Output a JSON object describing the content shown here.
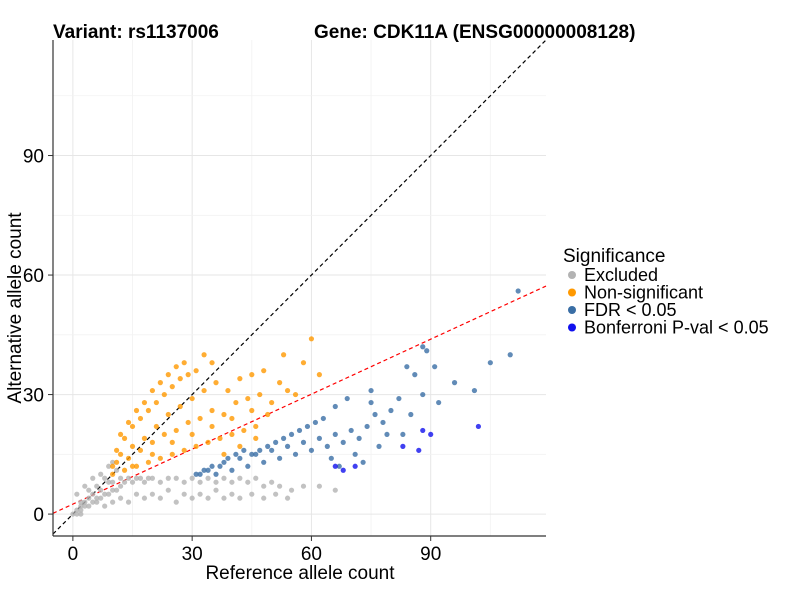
{
  "chart_data": {
    "type": "scatter",
    "title_left": "Variant: rs1137006",
    "title_right": "Gene: CDK11A (ENSG00000008128)",
    "xlabel": "Reference allele count",
    "ylabel": "Alternative allele count",
    "xlim": [
      -5,
      119
    ],
    "ylim": [
      -5.5,
      119
    ],
    "x_ticks": [
      0,
      30,
      60,
      90
    ],
    "y_ticks": [
      0,
      30,
      60,
      90
    ],
    "grid": true,
    "legend": {
      "title": "Significance",
      "position": "right",
      "entries": [
        {
          "label": "Excluded",
          "color": "#b3b3b3"
        },
        {
          "label": "Non-significant",
          "color": "#ff9900"
        },
        {
          "label": "FDR < 0.05",
          "color": "#3a6ea5"
        },
        {
          "label": "Bonferroni P-val < 0.05",
          "color": "#1010ee"
        }
      ]
    },
    "reference_lines": [
      {
        "name": "identity",
        "slope": 1.0,
        "intercept": 0,
        "color": "#000000",
        "style": "dashed"
      },
      {
        "name": "fit",
        "slope": 0.46,
        "intercept": 2.5,
        "color": "#ff0000",
        "style": "dashed"
      }
    ],
    "series": [
      {
        "name": "Excluded",
        "color": "#b3b3b3",
        "points": [
          [
            1,
            1
          ],
          [
            2,
            1
          ],
          [
            2,
            2
          ],
          [
            3,
            2
          ],
          [
            3,
            3
          ],
          [
            4,
            2
          ],
          [
            4,
            4
          ],
          [
            5,
            3
          ],
          [
            5,
            5
          ],
          [
            6,
            3
          ],
          [
            6,
            4
          ],
          [
            7,
            4
          ],
          [
            7,
            6
          ],
          [
            8,
            5
          ],
          [
            9,
            5
          ],
          [
            9,
            8
          ],
          [
            10,
            6
          ],
          [
            10,
            8
          ],
          [
            11,
            6
          ],
          [
            12,
            7
          ],
          [
            12,
            9
          ],
          [
            13,
            8
          ],
          [
            14,
            9
          ],
          [
            15,
            8
          ],
          [
            16,
            9
          ],
          [
            17,
            9
          ],
          [
            18,
            8
          ],
          [
            19,
            9
          ],
          [
            20,
            9
          ],
          [
            22,
            8
          ],
          [
            24,
            9
          ],
          [
            26,
            9
          ],
          [
            28,
            8
          ],
          [
            30,
            9
          ],
          [
            32,
            8
          ],
          [
            34,
            9
          ],
          [
            36,
            8
          ],
          [
            38,
            9
          ],
          [
            40,
            8
          ],
          [
            42,
            9
          ],
          [
            44,
            8
          ],
          [
            46,
            9
          ],
          [
            48,
            7
          ],
          [
            50,
            8
          ],
          [
            52,
            7
          ],
          [
            55,
            6
          ],
          [
            58,
            7
          ],
          [
            62,
            7
          ],
          [
            66,
            6
          ],
          [
            8,
            2
          ],
          [
            10,
            3
          ],
          [
            12,
            4
          ],
          [
            14,
            3
          ],
          [
            16,
            5
          ],
          [
            18,
            4
          ],
          [
            20,
            5
          ],
          [
            22,
            4
          ],
          [
            24,
            6
          ],
          [
            26,
            3
          ],
          [
            28,
            5
          ],
          [
            30,
            4
          ],
          [
            32,
            5
          ],
          [
            34,
            4
          ],
          [
            36,
            6
          ],
          [
            38,
            4
          ],
          [
            40,
            5
          ],
          [
            42,
            4
          ],
          [
            45,
            5
          ],
          [
            48,
            4
          ],
          [
            51,
            5
          ],
          [
            54,
            4
          ],
          [
            2,
            3
          ],
          [
            4,
            6
          ],
          [
            6,
            7
          ],
          [
            8,
            9
          ],
          [
            1,
            5
          ],
          [
            3,
            7
          ],
          [
            5,
            9
          ],
          [
            7,
            10
          ],
          [
            9,
            12
          ],
          [
            10,
            13
          ],
          [
            11,
            11
          ],
          [
            0,
            0
          ],
          [
            1,
            0
          ],
          [
            2,
            0
          ]
        ]
      },
      {
        "name": "Non-significant",
        "color": "#ff9900",
        "points": [
          [
            10,
            10
          ],
          [
            11,
            13
          ],
          [
            12,
            15
          ],
          [
            13,
            11
          ],
          [
            14,
            14
          ],
          [
            15,
            17
          ],
          [
            16,
            12
          ],
          [
            17,
            16
          ],
          [
            18,
            19
          ],
          [
            19,
            13
          ],
          [
            20,
            18
          ],
          [
            21,
            22
          ],
          [
            22,
            14
          ],
          [
            23,
            20
          ],
          [
            24,
            25
          ],
          [
            25,
            15
          ],
          [
            26,
            21
          ],
          [
            27,
            27
          ],
          [
            28,
            16
          ],
          [
            29,
            23
          ],
          [
            30,
            29
          ],
          [
            31,
            17
          ],
          [
            32,
            24
          ],
          [
            33,
            31
          ],
          [
            34,
            18
          ],
          [
            35,
            26
          ],
          [
            36,
            33
          ],
          [
            37,
            19
          ],
          [
            38,
            25
          ],
          [
            39,
            31
          ],
          [
            40,
            20
          ],
          [
            41,
            28
          ],
          [
            42,
            34
          ],
          [
            43,
            21
          ],
          [
            44,
            29
          ],
          [
            45,
            35
          ],
          [
            46,
            22
          ],
          [
            47,
            30
          ],
          [
            48,
            36
          ],
          [
            50,
            28
          ],
          [
            52,
            33
          ],
          [
            54,
            31
          ],
          [
            56,
            30
          ],
          [
            58,
            38
          ],
          [
            60,
            44
          ],
          [
            62,
            35
          ],
          [
            53,
            40
          ],
          [
            12,
            20
          ],
          [
            14,
            23
          ],
          [
            16,
            26
          ],
          [
            18,
            28
          ],
          [
            20,
            31
          ],
          [
            22,
            33
          ],
          [
            24,
            35
          ],
          [
            26,
            37
          ],
          [
            28,
            38
          ],
          [
            33,
            40
          ],
          [
            35,
            38
          ],
          [
            10,
            12
          ],
          [
            11,
            16
          ],
          [
            13,
            19
          ],
          [
            15,
            22
          ],
          [
            17,
            24
          ],
          [
            19,
            26
          ],
          [
            21,
            28
          ],
          [
            23,
            30
          ],
          [
            25,
            32
          ],
          [
            27,
            34
          ],
          [
            29,
            35
          ],
          [
            31,
            36
          ],
          [
            15,
            12
          ],
          [
            20,
            15
          ],
          [
            25,
            18
          ],
          [
            30,
            20
          ],
          [
            35,
            22
          ],
          [
            40,
            24
          ],
          [
            45,
            26
          ],
          [
            49,
            25
          ],
          [
            38,
            15
          ],
          [
            42,
            17
          ],
          [
            46,
            19
          ]
        ]
      },
      {
        "name": "FDR < 0.05",
        "color": "#3a6ea5",
        "points": [
          [
            31,
            10
          ],
          [
            33,
            11
          ],
          [
            35,
            12
          ],
          [
            36,
            10
          ],
          [
            38,
            13
          ],
          [
            40,
            11
          ],
          [
            42,
            14
          ],
          [
            44,
            12
          ],
          [
            46,
            15
          ],
          [
            48,
            13
          ],
          [
            50,
            16
          ],
          [
            52,
            14
          ],
          [
            54,
            17
          ],
          [
            56,
            15
          ],
          [
            58,
            18
          ],
          [
            60,
            16
          ],
          [
            62,
            19
          ],
          [
            64,
            17
          ],
          [
            66,
            20
          ],
          [
            68,
            18
          ],
          [
            70,
            21
          ],
          [
            72,
            19
          ],
          [
            74,
            22
          ],
          [
            76,
            25
          ],
          [
            78,
            23
          ],
          [
            80,
            26
          ],
          [
            82,
            29
          ],
          [
            84,
            37
          ],
          [
            86,
            35
          ],
          [
            88,
            42
          ],
          [
            89,
            41
          ],
          [
            91,
            37
          ],
          [
            105,
            38
          ],
          [
            112,
            56
          ],
          [
            75,
            31
          ],
          [
            69,
            29
          ],
          [
            66,
            27
          ],
          [
            63,
            24
          ],
          [
            61,
            23
          ],
          [
            59,
            22
          ],
          [
            57,
            21
          ],
          [
            55,
            20
          ],
          [
            53,
            19
          ],
          [
            51,
            18
          ],
          [
            49,
            17
          ],
          [
            47,
            16
          ],
          [
            45,
            15
          ],
          [
            43,
            16
          ],
          [
            41,
            15
          ],
          [
            39,
            14
          ],
          [
            37,
            12
          ],
          [
            34,
            11
          ],
          [
            32,
            10
          ],
          [
            65,
            14
          ],
          [
            67,
            12
          ],
          [
            71,
            15
          ],
          [
            73,
            13
          ],
          [
            77,
            17
          ],
          [
            79,
            20
          ],
          [
            75,
            28
          ],
          [
            83,
            20
          ],
          [
            85,
            25
          ],
          [
            88,
            30
          ],
          [
            92,
            28
          ],
          [
            96,
            33
          ],
          [
            101,
            31
          ],
          [
            110,
            40
          ]
        ]
      },
      {
        "name": "Bonferroni P-val < 0.05",
        "color": "#1010ee",
        "points": [
          [
            66,
            12
          ],
          [
            68,
            11
          ],
          [
            71,
            12
          ],
          [
            83,
            17
          ],
          [
            87,
            16
          ],
          [
            88,
            21
          ],
          [
            90,
            20
          ],
          [
            102,
            22
          ]
        ]
      }
    ]
  }
}
